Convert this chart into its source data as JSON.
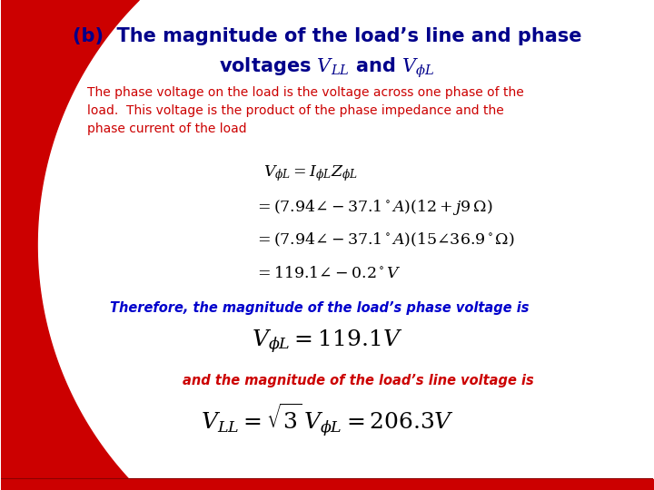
{
  "bg_color": "#ffffff",
  "red_color": "#cc0000",
  "title_color": "#00008B",
  "body_text_color": "#cc0000",
  "blue_text_color": "#0000cc",
  "math_color": "#000000",
  "title_line1": "(b)  The magnitude of the load’s line and phase",
  "title_line2": "voltages $V_{LL}$ and $V_{\\phi L}$",
  "body_text": "The phase voltage on the load is the voltage across one phase of the\nload.  This voltage is the product of the phase impedance and the\nphase current of the load",
  "eq1": "$V_{\\phi L} = I_{\\phi L} Z_{\\phi L}$",
  "eq2": "$= (7.94\\angle -37.1^\\circ A)(12 + j9\\,\\Omega)$",
  "eq3": "$= (7.94\\angle -37.1^\\circ A)(15\\angle 36.9^\\circ\\Omega)$",
  "eq4": "$= 119.1\\angle -0.2^\\circ V$",
  "therefore_text": "Therefore, the magnitude of the load’s phase voltage is",
  "eq_phase": "$V_{\\phi L} = 119.1V$",
  "line_voltage_text": "and the magnitude of the load’s line voltage is",
  "eq_line": "$V_{LL} = \\sqrt{3}\\,V_{\\phi L} = 206.3V$"
}
